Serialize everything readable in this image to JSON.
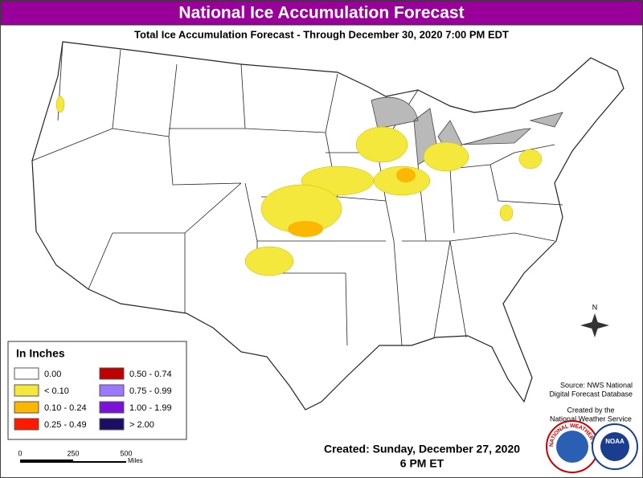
{
  "header": {
    "title": "National Ice Accumulation Forecast",
    "subtitle": "Total Ice Accumulation Forecast - Through December 30, 2020 7:00 PM EDT"
  },
  "legend": {
    "title": "In Inches",
    "items": [
      {
        "label": "0.00",
        "color": "#ffffff"
      },
      {
        "label": "< 0.10",
        "color": "#f5e83c"
      },
      {
        "label": "0.10 - 0.24",
        "color": "#fcb800"
      },
      {
        "label": "0.25 - 0.49",
        "color": "#ff1a00"
      },
      {
        "label": "0.50 - 0.74",
        "color": "#c00000"
      },
      {
        "label": "0.75 - 0.99",
        "color": "#9a79ff"
      },
      {
        "label": "1.00 - 1.99",
        "color": "#7a12d8"
      },
      {
        "label": "> 2.00",
        "color": "#1c0e63"
      }
    ]
  },
  "scale": {
    "labels": [
      "0",
      "250",
      "500"
    ],
    "unit": "Miles"
  },
  "compass": "N",
  "source": [
    "Source: NWS National",
    "Digital Forecast Database"
  ],
  "credit": [
    "Created by the",
    "National Weather Service"
  ],
  "created": [
    "Created:  Sunday, December 27, 2020",
    "6 PM ET"
  ],
  "logos": {
    "nws": "NATIONAL WEATHER SERVICE",
    "noaa": "NOAA"
  }
}
